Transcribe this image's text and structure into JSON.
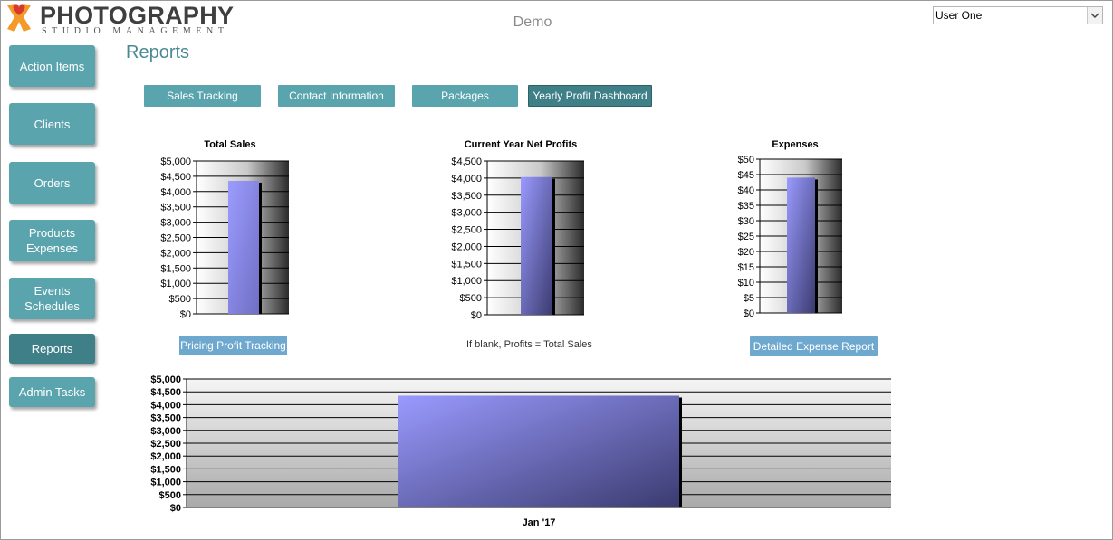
{
  "header": {
    "brand_title": "PHOTOGRAPHY",
    "brand_subtitle": "STUDIO MANAGEMENT",
    "center_title": "Demo",
    "user_select": {
      "value": "User One",
      "icon": "chevron-down-icon"
    }
  },
  "sidebar": {
    "items": [
      {
        "label": "Action Items"
      },
      {
        "label": "Clients"
      },
      {
        "label": "Orders"
      },
      {
        "label": "Products\nExpenses"
      },
      {
        "label": "Events\nSchedules"
      },
      {
        "label": "Reports",
        "active": true
      },
      {
        "label": "Admin Tasks"
      }
    ]
  },
  "main": {
    "title": "Reports",
    "tabs": [
      {
        "label": "Sales Tracking"
      },
      {
        "label": "Contact Information"
      },
      {
        "label": "Packages"
      },
      {
        "label": "Yearly Profit Dashboard",
        "active": true
      }
    ],
    "buttons": {
      "pricing_profit": "Pricing Profit Tracking",
      "detailed_expense": "Detailed Expense Report"
    },
    "note": "If blank, Profits = Total Sales"
  },
  "colors": {
    "accent": "#5aa4ae",
    "accent_active": "#3e7f88",
    "link": "#6fa8cf",
    "bar": "#9a9aff"
  },
  "chart_data": [
    {
      "type": "bar",
      "title": "Total Sales",
      "categories": [
        ""
      ],
      "values": [
        4350
      ],
      "ylim": [
        0,
        5000
      ],
      "yticks": [
        "$0",
        "$500",
        "$1,000",
        "$1,500",
        "$2,000",
        "$2,500",
        "$3,000",
        "$3,500",
        "$4,000",
        "$4,500",
        "$5,000"
      ],
      "grid": true
    },
    {
      "type": "bar",
      "title": "Current Year Net Profits",
      "categories": [
        ""
      ],
      "values": [
        4030
      ],
      "ylim": [
        0,
        4500
      ],
      "yticks": [
        "$0",
        "$500",
        "$1,000",
        "$1,500",
        "$2,000",
        "$2,500",
        "$3,000",
        "$3,500",
        "$4,000",
        "$4,500"
      ],
      "grid": true
    },
    {
      "type": "bar",
      "title": "Expenses",
      "categories": [
        ""
      ],
      "values": [
        44
      ],
      "ylim": [
        0,
        50
      ],
      "yticks": [
        "$0",
        "$5",
        "$10",
        "$15",
        "$20",
        "$25",
        "$30",
        "$35",
        "$40",
        "$45",
        "$50"
      ],
      "grid": true
    },
    {
      "type": "bar",
      "title": "",
      "categories": [
        "Jan '17"
      ],
      "values": [
        4350
      ],
      "ylim": [
        0,
        5000
      ],
      "yticks": [
        "$0",
        "$500",
        "$1,000",
        "$1,500",
        "$2,000",
        "$2,500",
        "$3,000",
        "$3,500",
        "$4,000",
        "$4,500",
        "$5,000"
      ],
      "grid": true
    }
  ]
}
